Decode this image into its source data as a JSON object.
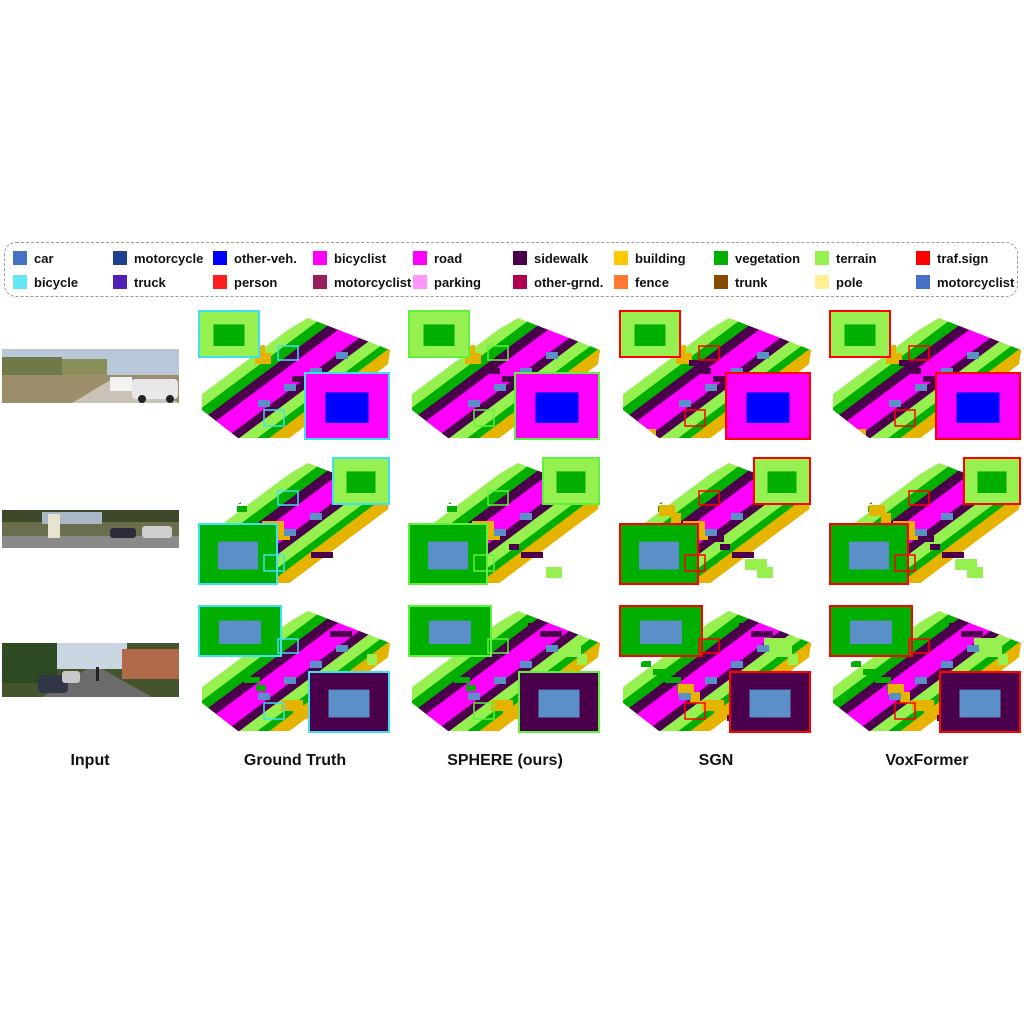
{
  "legend": {
    "items": [
      {
        "label": "car",
        "color": "#4472c4"
      },
      {
        "label": "motorcycle",
        "color": "#1f3f8f"
      },
      {
        "label": "other-veh.",
        "color": "#0000ff"
      },
      {
        "label": "bicyclist",
        "color": "#ff00ff"
      },
      {
        "label": "road",
        "color": "#ff00ff"
      },
      {
        "label": "sidewalk",
        "color": "#4b004b"
      },
      {
        "label": "building",
        "color": "#ffc800"
      },
      {
        "label": "vegetation",
        "color": "#00af00"
      },
      {
        "label": "terrain",
        "color": "#96f050"
      },
      {
        "label": "traf.sign",
        "color": "#ff0000"
      },
      {
        "label": "bicycle",
        "color": "#64e6f5"
      },
      {
        "label": "truck",
        "color": "#501eb4"
      },
      {
        "label": "person",
        "color": "#ff1e1e"
      },
      {
        "label": "motorcyclist",
        "color": "#961e5a"
      },
      {
        "label": "parking",
        "color": "#ff96ff"
      },
      {
        "label": "other-grnd.",
        "color": "#af0050"
      },
      {
        "label": "fence",
        "color": "#ff7832"
      },
      {
        "label": "trunk",
        "color": "#874b00"
      },
      {
        "label": "pole",
        "color": "#fff096"
      },
      {
        "label": "motorcyclist",
        "color": "#4472c4"
      }
    ]
  },
  "columns": {
    "input": "Input",
    "ground_truth": "Ground Truth",
    "sphere": "SPHERE (ours)",
    "sgn": "SGN",
    "voxformer": "VoxFormer"
  },
  "colors": {
    "road": "#ff00ff",
    "sidewalk": "#4b004b",
    "terrain": "#96f050",
    "vegetation": "#00af00",
    "building": "#e6b400",
    "car": "#5a8fc8",
    "other_veh": "#0000ff",
    "gt_highlight": "#40e0f0",
    "ours_highlight": "#60f040",
    "baseline_highlight": "#ff0000"
  }
}
